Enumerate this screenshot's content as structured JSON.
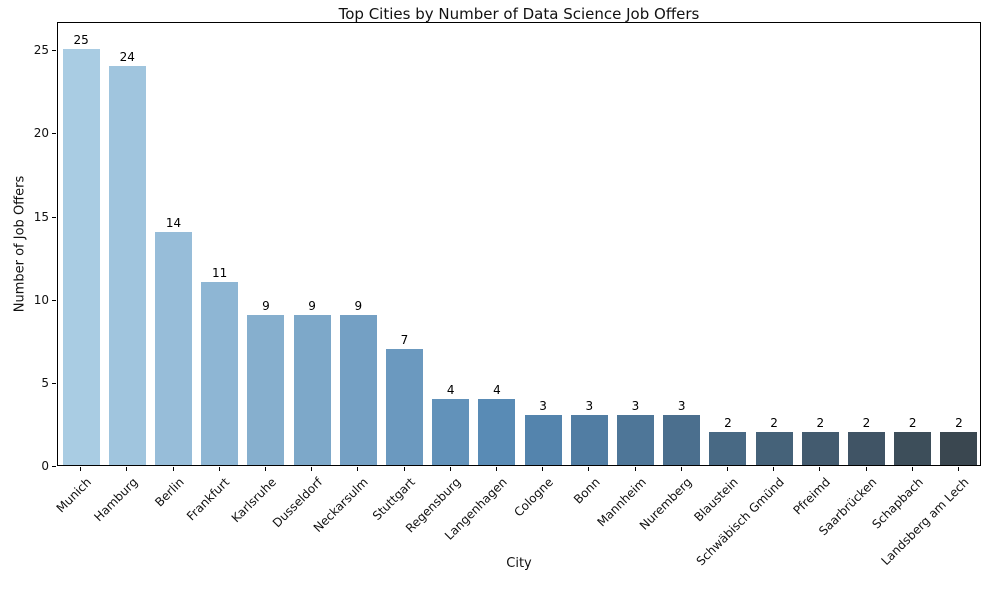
{
  "chart_data": {
    "type": "bar",
    "title": "Top Cities by Number of Data Science Job Offers",
    "xlabel": "City",
    "ylabel": "Number of Job Offers",
    "categories": [
      "Munich",
      "Hamburg",
      "Berlin",
      "Frankfurt",
      "Karlsruhe",
      "Dusseldorf",
      "Neckarsulm",
      "Stuttgart",
      "Regensburg",
      "Langenhagen",
      "Cologne",
      "Bonn",
      "Mannheim",
      "Nuremberg",
      "Blaustein",
      "Schwäbisch Gmünd",
      "Pfreimd",
      "Saarbrücken",
      "Schapbach",
      "Landsberg am Lech"
    ],
    "values": [
      25,
      24,
      14,
      11,
      9,
      9,
      9,
      7,
      4,
      4,
      3,
      3,
      3,
      3,
      2,
      2,
      2,
      2,
      2,
      2
    ],
    "bar_value_labels_shown": true,
    "yticks": [
      0,
      5,
      10,
      15,
      20,
      25
    ],
    "ylim": [
      0,
      26.7
    ],
    "grid": false,
    "legend": "none",
    "palette_stops": [
      "#a9cce3",
      "#5587b2",
      "#3a4750"
    ],
    "spine_color": "#000000"
  }
}
